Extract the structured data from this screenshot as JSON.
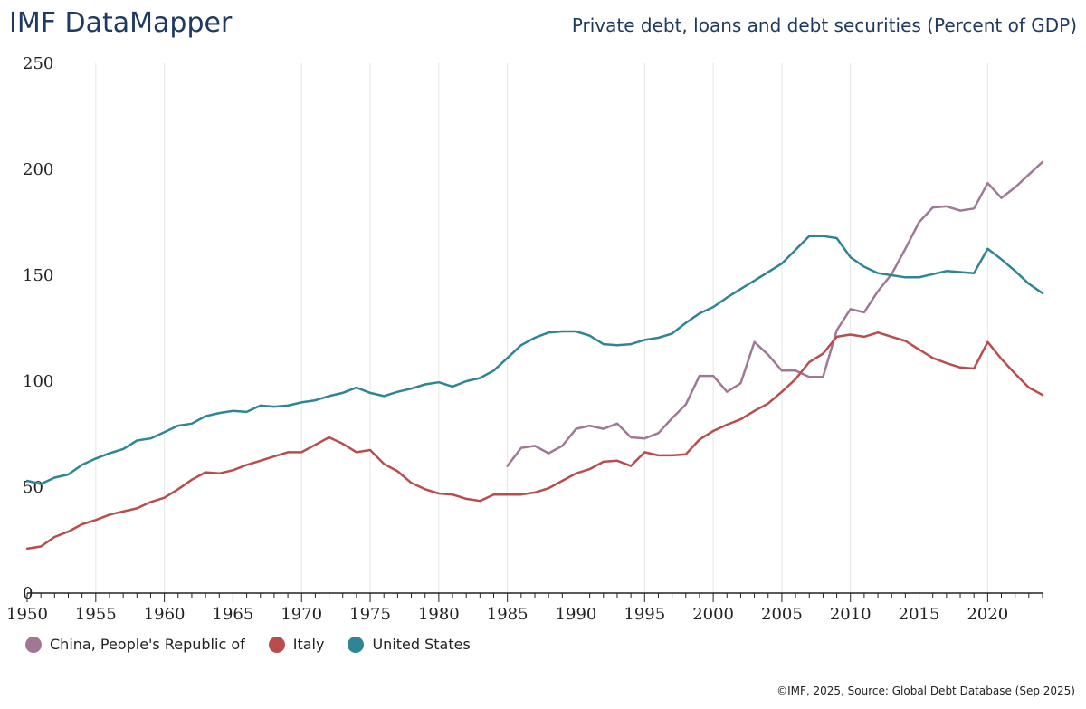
{
  "header": {
    "brand": "IMF DataMapper"
  },
  "footer": {
    "credit": "©IMF, 2025, Source: Global Debt Database (Sep 2025)"
  },
  "chart_data": {
    "type": "line",
    "title": "Private debt, loans and debt securities (Percent of GDP)",
    "xlabel": "",
    "ylabel": "",
    "xlim": [
      1950,
      2024
    ],
    "ylim": [
      0,
      250
    ],
    "yticks": [
      0,
      50,
      100,
      150,
      200,
      250
    ],
    "xticks": [
      1950,
      1955,
      1960,
      1965,
      1970,
      1975,
      1980,
      1985,
      1990,
      1995,
      2000,
      2005,
      2010,
      2015,
      2020
    ],
    "grid": "vertical",
    "legend": "bottom-left",
    "series": [
      {
        "name": "China, People's Republic of",
        "color": "#a07896",
        "id": "china",
        "x": [
          1985,
          1986,
          1987,
          1988,
          1989,
          1990,
          1991,
          1992,
          1993,
          1994,
          1995,
          1996,
          1997,
          1998,
          1999,
          2000,
          2001,
          2002,
          2003,
          2004,
          2005,
          2006,
          2007,
          2008,
          2009,
          2010,
          2011,
          2012,
          2013,
          2014,
          2015,
          2016,
          2017,
          2018,
          2019,
          2020,
          2021,
          2022,
          2023,
          2024
        ],
        "values": [
          60,
          68.5,
          69.5,
          66,
          69.5,
          77.5,
          79,
          77.5,
          80,
          73.5,
          73,
          75.5,
          82.5,
          89,
          102.5,
          102.5,
          95,
          99,
          118.5,
          112.5,
          105,
          105,
          102,
          102,
          124,
          134,
          132.5,
          142.5,
          150.5,
          162.5,
          175,
          182,
          182.5,
          180.5,
          181.5,
          193.5,
          186.5,
          191.5,
          197.5,
          203.5
        ]
      },
      {
        "name": "Italy",
        "color": "#b94d4d",
        "id": "italy",
        "x": [
          1950,
          1951,
          1952,
          1953,
          1954,
          1955,
          1956,
          1957,
          1958,
          1959,
          1960,
          1961,
          1962,
          1963,
          1964,
          1965,
          1966,
          1967,
          1968,
          1969,
          1970,
          1971,
          1972,
          1973,
          1974,
          1975,
          1976,
          1977,
          1978,
          1979,
          1980,
          1981,
          1982,
          1983,
          1984,
          1985,
          1986,
          1987,
          1988,
          1989,
          1990,
          1991,
          1992,
          1993,
          1994,
          1995,
          1996,
          1997,
          1998,
          1999,
          2000,
          2001,
          2002,
          2003,
          2004,
          2005,
          2006,
          2007,
          2008,
          2009,
          2010,
          2011,
          2012,
          2013,
          2014,
          2015,
          2016,
          2017,
          2018,
          2019,
          2020,
          2021,
          2022,
          2023,
          2024
        ],
        "values": [
          21,
          22,
          26.5,
          29,
          32.5,
          34.5,
          37,
          38.5,
          40,
          43,
          45,
          49,
          53.5,
          57,
          56.5,
          58,
          60.5,
          62.5,
          64.5,
          66.5,
          66.5,
          70,
          73.5,
          70.5,
          66.5,
          67.5,
          61,
          57.5,
          52,
          49,
          47,
          46.5,
          44.5,
          43.5,
          46.5,
          46.5,
          46.5,
          47.5,
          49.5,
          53,
          56.5,
          58.5,
          62,
          62.5,
          60,
          66.5,
          65,
          65,
          65.5,
          72.5,
          76.5,
          79.5,
          82,
          86,
          89.5,
          95,
          101,
          109,
          113,
          121,
          122,
          121,
          123,
          121,
          119,
          115,
          111,
          108.5,
          106.5,
          106,
          118.5,
          110.5,
          103.5,
          97,
          93.5
        ]
      },
      {
        "name": "United States",
        "color": "#2e8596",
        "id": "us",
        "x": [
          1950,
          1951,
          1952,
          1953,
          1954,
          1955,
          1956,
          1957,
          1958,
          1959,
          1960,
          1961,
          1962,
          1963,
          1964,
          1965,
          1966,
          1967,
          1968,
          1969,
          1970,
          1971,
          1972,
          1973,
          1974,
          1975,
          1976,
          1977,
          1978,
          1979,
          1980,
          1981,
          1982,
          1983,
          1984,
          1985,
          1986,
          1987,
          1988,
          1989,
          1990,
          1991,
          1992,
          1993,
          1994,
          1995,
          1996,
          1997,
          1998,
          1999,
          2000,
          2001,
          2002,
          2003,
          2004,
          2005,
          2006,
          2007,
          2008,
          2009,
          2010,
          2011,
          2012,
          2013,
          2014,
          2015,
          2016,
          2017,
          2018,
          2019,
          2020,
          2021,
          2022,
          2023,
          2024
        ],
        "values": [
          53,
          51.5,
          54.5,
          56,
          60.5,
          63.5,
          66,
          68,
          72,
          73,
          76,
          79,
          80,
          83.5,
          85,
          86,
          85.5,
          88.5,
          88,
          88.5,
          90,
          91,
          93,
          94.5,
          97,
          94.5,
          93,
          95,
          96.5,
          98.5,
          99.5,
          97.5,
          100,
          101.5,
          105,
          111,
          117,
          120.5,
          123,
          123.5,
          123.5,
          121.5,
          117.5,
          117,
          117.5,
          119.5,
          120.5,
          122.5,
          127.5,
          132,
          135,
          139.5,
          143.5,
          147.5,
          151.5,
          155.5,
          162,
          168.5,
          168.5,
          167.5,
          158.5,
          154,
          151,
          150,
          149,
          149,
          150.5,
          152,
          151.5,
          151,
          162.5,
          157.5,
          152,
          146,
          141.5
        ]
      }
    ]
  }
}
